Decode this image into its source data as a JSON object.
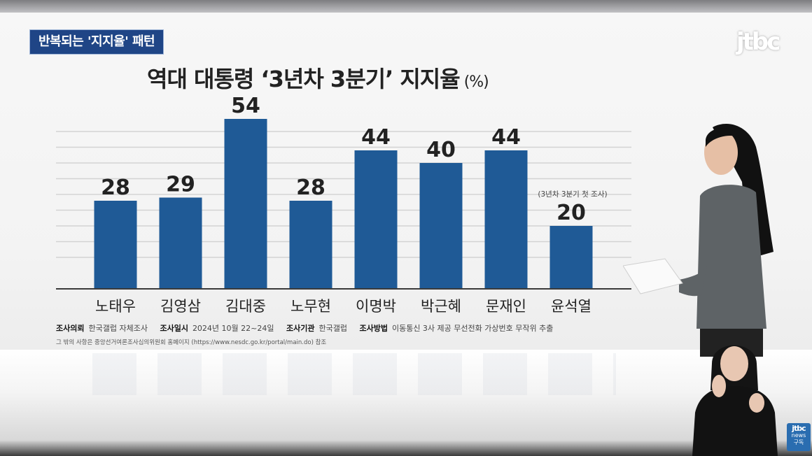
{
  "caption": "반복되는 '지지율' 패턴",
  "logo": "jtbc",
  "chart_data": {
    "type": "bar",
    "title": "역대 대통령 ‘3년차 3분기’ 지지율",
    "unit": "(%)",
    "categories": [
      "노태우",
      "김영삼",
      "김대중",
      "노무현",
      "이명박",
      "박근혜",
      "문재인",
      "윤석열"
    ],
    "values": [
      28,
      29,
      54,
      28,
      44,
      40,
      44,
      20
    ],
    "annotations": [
      {
        "category": "윤석열",
        "text": "(3년차 3분기 첫 조사)"
      }
    ],
    "ylim": [
      0,
      60
    ],
    "grid": true,
    "bar_color": "#1f5a96"
  },
  "footnote": {
    "client_label": "조사의뢰",
    "client": "한국갤럽 자체조사",
    "date_label": "조사일시",
    "date": "2024년 10월 22~24일",
    "org_label": "조사기관",
    "org": "한국갤럽",
    "method_label": "조사방법",
    "method": "이동통신 3사 제공 무선전화 가상번호 무작위 추출",
    "more": "그 밖의 사항은 중앙선거여론조사심의위원회 홈페이지 (https://www.nesdc.go.kr/portal/main.do) 참조"
  },
  "subscribe": {
    "logo": "jtbc",
    "brand": "news",
    "label": "구독"
  }
}
